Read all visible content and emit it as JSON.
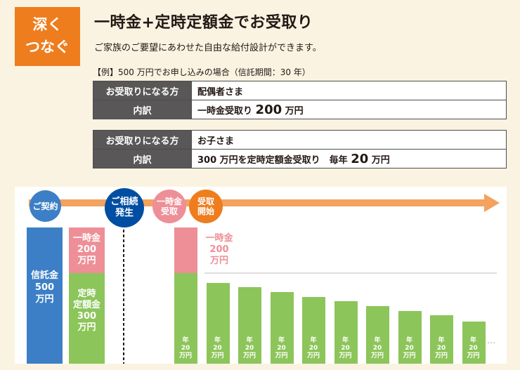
{
  "badge": {
    "line1": "深く",
    "line2": "つなぐ"
  },
  "title": "一時金+定時定額金でお受取り",
  "subtitle": "ご家族のご要望にあわせた自由な給付設計ができます。",
  "example": "【例】500 万円でお申し込みの場合（信託期間：30 年）",
  "table1": {
    "recipient_header": "お受取りになる方",
    "recipient": "配偶者さま",
    "breakdown_header": "内訳",
    "breakdown_prefix": "一時金受取り",
    "breakdown_amount": "200",
    "breakdown_unit": "万円"
  },
  "table2": {
    "recipient_header": "お受取りになる方",
    "recipient": "お子さま",
    "breakdown_header": "内訳",
    "breakdown_prefix": "300 万円を定時定額金受取り　毎年",
    "breakdown_amount": "20",
    "breakdown_unit": "万円"
  },
  "timeline": {
    "contract": "ご契約",
    "inheritance_1": "ご相続",
    "inheritance_2": "発生",
    "lump_1": "一時金",
    "lump_2": "受取",
    "start_1": "受取",
    "start_2": "開始"
  },
  "colors": {
    "orange": "#ee7d1e",
    "blue": "#3d7fc6",
    "darkblue": "#004ea2",
    "pink": "#ee8f97",
    "green": "#8cc55a"
  },
  "blocks": {
    "trust_1": "信託金",
    "trust_2": "500",
    "trust_3": "万円",
    "lump_left_1": "一時金",
    "lump_left_2": "200",
    "lump_left_3": "万円",
    "periodic_1": "定時",
    "periodic_2": "定額金",
    "periodic_3": "300",
    "periodic_4": "万円",
    "lump_right_1": "一時金",
    "lump_right_2": "200",
    "lump_right_3": "万円"
  },
  "chart_data": {
    "type": "bar",
    "title": "",
    "annual_label_1": "年",
    "annual_label_2": "20",
    "annual_label_3": "万円",
    "values": [
      20,
      20,
      20,
      20,
      20,
      20,
      20,
      20,
      20,
      20
    ],
    "ellipsis": "…"
  }
}
